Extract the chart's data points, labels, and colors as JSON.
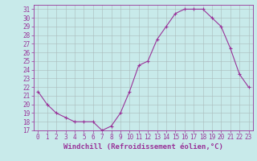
{
  "x": [
    0,
    1,
    2,
    3,
    4,
    5,
    6,
    7,
    8,
    9,
    10,
    11,
    12,
    13,
    14,
    15,
    16,
    17,
    18,
    19,
    20,
    21,
    22,
    23
  ],
  "y": [
    21.5,
    20.0,
    19.0,
    18.5,
    18.0,
    18.0,
    18.0,
    17.0,
    17.5,
    19.0,
    21.5,
    24.5,
    25.0,
    27.5,
    29.0,
    30.5,
    31.0,
    31.0,
    31.0,
    30.0,
    29.0,
    26.5,
    23.5,
    22.0
  ],
  "line_color": "#993399",
  "marker": "+",
  "marker_size": 4,
  "bg_color": "#c8eaea",
  "grid_color": "#aabbbb",
  "xlabel": "Windchill (Refroidissement éolien,°C)",
  "ylim": [
    17,
    31.5
  ],
  "xlim": [
    -0.5,
    23.5
  ],
  "yticks": [
    17,
    18,
    19,
    20,
    21,
    22,
    23,
    24,
    25,
    26,
    27,
    28,
    29,
    30,
    31
  ],
  "xticks": [
    0,
    1,
    2,
    3,
    4,
    5,
    6,
    7,
    8,
    9,
    10,
    11,
    12,
    13,
    14,
    15,
    16,
    17,
    18,
    19,
    20,
    21,
    22,
    23
  ],
  "axis_color": "#993399",
  "label_fontsize": 6.5,
  "tick_fontsize": 5.5
}
